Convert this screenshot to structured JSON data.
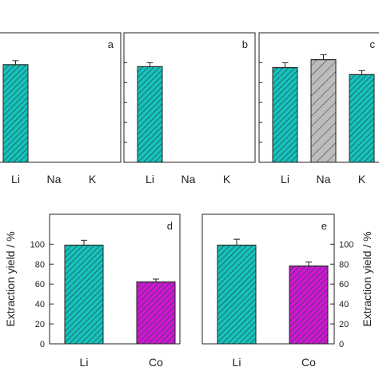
{
  "colors": {
    "teal": "#17c2bd",
    "gray": "#bcbcbc",
    "magenta": "#d315d3",
    "hatch": "#1d4a49"
  },
  "chart_data": [
    {
      "type": "bar",
      "panel": "a",
      "categories": [
        "Li",
        "Na",
        "K"
      ],
      "values": [
        98,
        0,
        0
      ],
      "errors": [
        4,
        0,
        0
      ],
      "colors": [
        "teal",
        "none",
        "none"
      ],
      "ylim": [
        0,
        130
      ],
      "yticks": [],
      "ylabel": ""
    },
    {
      "type": "bar",
      "panel": "b",
      "categories": [
        "Li",
        "Na",
        "K"
      ],
      "values": [
        96,
        0,
        0
      ],
      "errors": [
        4,
        0,
        0
      ],
      "colors": [
        "teal",
        "none",
        "none"
      ],
      "ylim": [
        0,
        130
      ],
      "yticks": [],
      "ylabel": ""
    },
    {
      "type": "bar",
      "panel": "c",
      "categories": [
        "Li",
        "Na",
        "K"
      ],
      "values": [
        95,
        103,
        88
      ],
      "errors": [
        5,
        5,
        4
      ],
      "colors": [
        "teal",
        "gray",
        "teal"
      ],
      "ylim": [
        0,
        130
      ],
      "yticks": [],
      "ylabel": ""
    },
    {
      "type": "bar",
      "panel": "d",
      "categories": [
        "Li",
        "Co"
      ],
      "values": [
        99,
        62
      ],
      "errors": [
        5,
        3
      ],
      "colors": [
        "teal",
        "magenta"
      ],
      "ylim": [
        0,
        130
      ],
      "yticks": [
        0,
        20,
        40,
        60,
        80,
        100
      ],
      "ylabel": "Extraction yield / %"
    },
    {
      "type": "bar",
      "panel": "e",
      "categories": [
        "Li",
        "Co"
      ],
      "values": [
        99,
        78
      ],
      "errors": [
        6,
        4
      ],
      "colors": [
        "teal",
        "magenta"
      ],
      "ylim": [
        0,
        130
      ],
      "yticks": [
        0,
        20,
        40,
        60,
        80,
        100
      ],
      "ylabel": "Extraction yield / %"
    }
  ]
}
